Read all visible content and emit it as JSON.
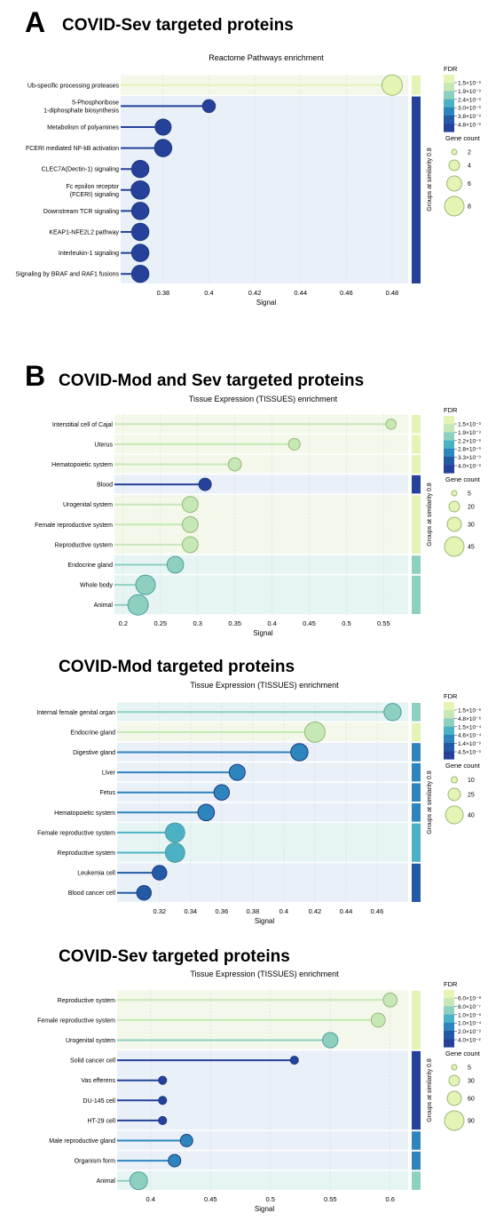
{
  "panel_a": {
    "letter": "A",
    "heading": "COVID-Sev targeted proteins"
  },
  "panel_b": {
    "letter": "B",
    "heading": "COVID-Mod and Sev targeted proteins"
  },
  "heading_mod": "COVID-Mod targeted proteins",
  "heading_sev": "COVID-Sev targeted proteins",
  "common": {
    "xlabel": "Signal",
    "fdr_label": "FDR",
    "gene_count_label": "Gene count",
    "groups_label": "Groups at similarity 0.8"
  },
  "colors": {
    "c1": "#e4f4b4",
    "c2": "#c6e8b6",
    "c3": "#8dd0c0",
    "c4": "#4cb1c4",
    "c5": "#2e84bd",
    "c6": "#235aa5",
    "c7": "#25419a",
    "band_light": "#eaf0f8",
    "band_green": "#f3f8ea",
    "band_teal": "#e6f4f4"
  },
  "chart_data": [
    {
      "type": "scatter",
      "title": "Reactome Pathways enrichment",
      "xlabel": "Signal",
      "xlim": [
        0.363,
        0.487
      ],
      "xticks": [
        0.38,
        0.4,
        0.42,
        0.44,
        0.46,
        0.48
      ],
      "categories": [
        "Ub-specific processing proteases",
        "5-Phosphoribose 1-diphosphate biosynthesis",
        "Metabolism of polyamines",
        "FCERI mediated NF-kB activation",
        "CLEC7A(Dectin-1) signaling",
        "Fc epsilon receptor (FCERI) signaling",
        "Downstream TCR signaling",
        "KEAP1-NFE2L2 pathway",
        "Interleukin-1 signaling",
        "Signaling by BRAF and RAF1 fusions"
      ],
      "signal": [
        0.48,
        0.4,
        0.38,
        0.38,
        0.37,
        0.37,
        0.37,
        0.37,
        0.37,
        0.37
      ],
      "gene_count": [
        8,
        2,
        4,
        5,
        5,
        6,
        5,
        5,
        5,
        5
      ],
      "color_level": [
        1,
        7,
        7,
        7,
        7,
        7,
        7,
        7,
        7,
        7
      ],
      "groups": [
        1,
        2,
        2,
        2,
        2,
        2,
        2,
        2,
        2,
        2
      ],
      "group_colors": [
        1,
        7
      ],
      "fdr_legend": [
        "1.5×10⁻³",
        "1.9×10⁻³",
        "2.4×10⁻³",
        "3.0×10⁻³",
        "3.8×10⁻³",
        "4.8×10⁻³"
      ],
      "gene_count_legend": [
        "2",
        "4",
        "6",
        "8"
      ]
    },
    {
      "type": "scatter",
      "title": "Tissue Expression (TISSUES) enrichment",
      "xlabel": "Signal",
      "xlim": [
        0.193,
        0.583
      ],
      "xticks": [
        0.2,
        0.25,
        0.3,
        0.35,
        0.4,
        0.45,
        0.5,
        0.55
      ],
      "categories": [
        "Interstitial cell of Cajal",
        "Uterus",
        "Hematopoietic system",
        "Blood",
        "Urogenital system",
        "Female reproductive system",
        "Reproductive system",
        "Endocrine gland",
        "Whole body",
        "Animal"
      ],
      "signal": [
        0.56,
        0.43,
        0.35,
        0.31,
        0.29,
        0.29,
        0.29,
        0.27,
        0.23,
        0.22
      ],
      "gene_count": [
        5,
        8,
        12,
        10,
        22,
        22,
        22,
        25,
        40,
        45
      ],
      "color_level": [
        2,
        2,
        2,
        7,
        2,
        2,
        2,
        3,
        3,
        3
      ],
      "groups": [
        1,
        2,
        3,
        4,
        5,
        5,
        5,
        6,
        7,
        7
      ],
      "group_colors": [
        1,
        1,
        1,
        7,
        1,
        3,
        3
      ],
      "fdr_legend": [
        "1.5×10⁻³",
        "1.9×10⁻³",
        "2.2×10⁻³",
        "2.8×10⁻³",
        "3.3×10⁻³",
        "4.0×10⁻³"
      ],
      "gene_count_legend": [
        "5",
        "20",
        "30",
        "45"
      ]
    },
    {
      "type": "scatter",
      "title": "Tissue Expression (TISSUES) enrichment",
      "xlabel": "Signal",
      "xlim": [
        0.295,
        0.48
      ],
      "xticks": [
        0.32,
        0.34,
        0.36,
        0.38,
        0.4,
        0.42,
        0.44,
        0.46
      ],
      "categories": [
        "Internal female genital organ",
        "Endocrine gland",
        "Digestive gland",
        "Liver",
        "Fetus",
        "Hematopoietic system",
        "Female reproductive system",
        "Reproductive system",
        "Leukemia cell",
        "Blood cancer cell"
      ],
      "signal": [
        0.47,
        0.42,
        0.41,
        0.37,
        0.36,
        0.35,
        0.33,
        0.33,
        0.32,
        0.31
      ],
      "gene_count": [
        25,
        40,
        25,
        20,
        18,
        22,
        35,
        35,
        15,
        15
      ],
      "color_level": [
        3,
        2,
        5,
        5,
        5,
        5,
        4,
        4,
        6,
        6
      ],
      "groups": [
        1,
        2,
        3,
        4,
        5,
        6,
        7,
        7,
        8,
        8
      ],
      "group_colors": [
        3,
        1,
        5,
        5,
        5,
        5,
        4,
        6
      ],
      "fdr_legend": [
        "1.5×10⁻⁶",
        "4.8×10⁻⁶",
        "1.5×10⁻⁴",
        "4.6×10⁻⁴",
        "1.4×10⁻³",
        "4.5×10⁻³"
      ],
      "gene_count_legend": [
        "10",
        "25",
        "40"
      ]
    },
    {
      "type": "scatter",
      "title": "Tissue Expression (TISSUES) enrichment",
      "xlabel": "Signal",
      "xlim": [
        0.375,
        0.615
      ],
      "xticks": [
        0.4,
        0.45,
        0.5,
        0.55,
        0.6
      ],
      "categories": [
        "Reproductive system",
        "Female reproductive system",
        "Urogenital system",
        "Solid cancer cell",
        "Vas efferens",
        "DU-145 cell",
        "HT-29 cell",
        "Male reproductive gland",
        "Organism form",
        "Animal"
      ],
      "signal": [
        0.6,
        0.59,
        0.55,
        0.52,
        0.41,
        0.41,
        0.41,
        0.43,
        0.42,
        0.39
      ],
      "gene_count": [
        30,
        30,
        40,
        3,
        3,
        3,
        3,
        20,
        20,
        60
      ],
      "color_level": [
        2,
        2,
        3,
        7,
        7,
        7,
        7,
        5,
        5,
        3
      ],
      "groups": [
        1,
        1,
        1,
        2,
        2,
        2,
        2,
        3,
        4,
        5
      ],
      "group_colors": [
        1,
        7,
        5,
        5,
        3
      ],
      "fdr_legend": [
        "6.0×10⁻⁸",
        "8.0×10⁻⁷",
        "1.0×10⁻⁵",
        "1.0×10⁻⁴",
        "2.0×10⁻³",
        "4.0×10⁻²"
      ],
      "gene_count_legend": [
        "5",
        "30",
        "60",
        "90"
      ]
    }
  ]
}
